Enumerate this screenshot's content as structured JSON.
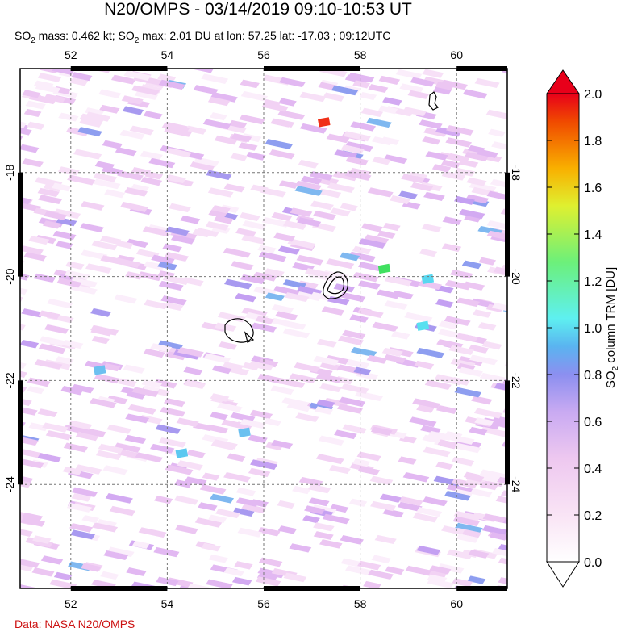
{
  "header": {
    "title": "N20/OMPS - 03/14/2019 09:10-10:53 UT",
    "so2_mass": "SO",
    "so2_mass_rest": " mass: 0.462 kt; SO",
    "so2_max_rest": " max: 2.01 DU at lon: 57.25 lat: -17.03 ; 09:12UTC",
    "subscript": "2"
  },
  "map": {
    "lon_ticks": [
      "52",
      "54",
      "56",
      "58",
      "60"
    ],
    "lat_ticks": [
      "-18",
      "-20",
      "-22",
      "-24"
    ],
    "lon_range": [
      50.95,
      61.05
    ],
    "lat_range": [
      -26.0,
      -16.0
    ],
    "islands": [
      "Reunion",
      "Mauritius",
      "Rodrigues-area islet"
    ],
    "max_pixel": {
      "lon": 57.25,
      "lat": -17.03,
      "value_du": 2.01
    }
  },
  "colorbar": {
    "label": "SO2 column TRM [DU]",
    "ticks": [
      "2.0",
      "1.8",
      "1.6",
      "1.4",
      "1.2",
      "1.0",
      "0.8",
      "0.6",
      "0.4",
      "0.2",
      "0.0"
    ],
    "min": 0.0,
    "max": 2.0,
    "top_arrow_color": "#e8001a",
    "colors": [
      "#ffffff",
      "#f7d6f0",
      "#d8b4f2",
      "#9b8cf0",
      "#5aaaf0",
      "#5ef0f0",
      "#7df07a",
      "#dff030",
      "#f9b000",
      "#f04a00",
      "#e8001a"
    ]
  },
  "footer": {
    "credit": "Data: NASA N20/OMPS"
  }
}
